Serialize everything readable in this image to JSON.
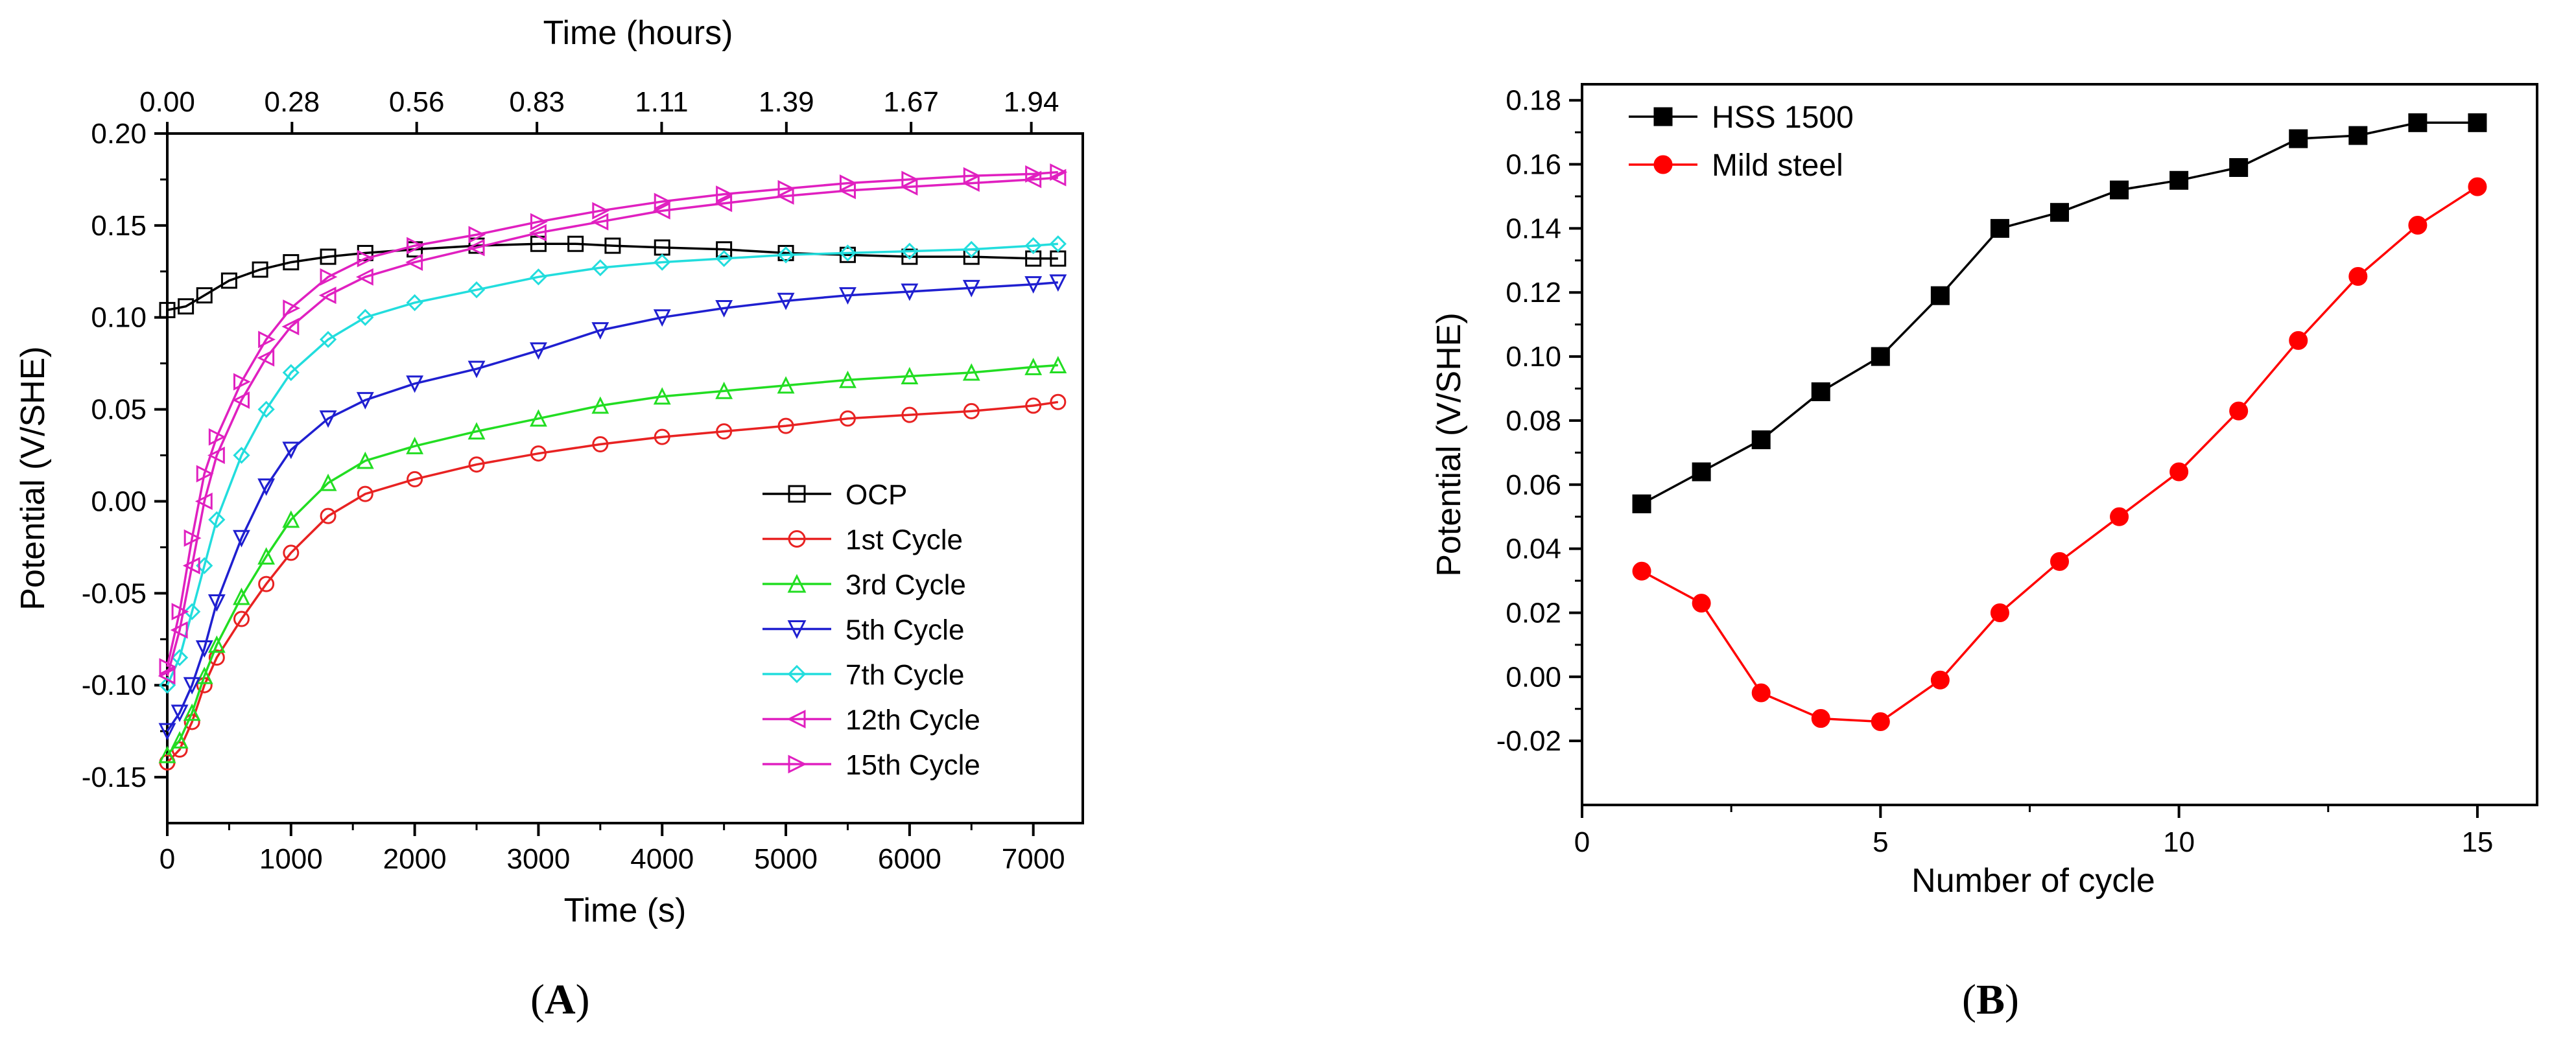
{
  "panels": {
    "a_open": "(",
    "a_letter": "A",
    "a_close": ")",
    "b_open": "(",
    "b_letter": "B",
    "b_close": ")"
  },
  "chart_data": [
    {
      "type": "line",
      "panel": "A",
      "xlabel": "Time (s)",
      "ylabel": "Potential (V/SHE)",
      "x2label": "Time (hours)",
      "xlim": [
        0,
        7400
      ],
      "ylim": [
        -0.175,
        0.2
      ],
      "x_ticks": [
        "0",
        "1000",
        "2000",
        "3000",
        "4000",
        "5000",
        "6000",
        "7000"
      ],
      "y_ticks": [
        "-0.15",
        "-0.10",
        "-0.05",
        "0.00",
        "0.05",
        "0.10",
        "0.15",
        "0.20"
      ],
      "x2_ticks": [
        "0.00",
        "0.28",
        "0.56",
        "0.83",
        "1.11",
        "1.39",
        "1.67",
        "1.94"
      ],
      "grid": false,
      "legend_position": "bottom-right",
      "series": [
        {
          "name": "OCP",
          "color": "#000000",
          "marker": "square",
          "x": [
            0,
            150,
            300,
            500,
            750,
            1000,
            1300,
            1600,
            2000,
            2500,
            3000,
            3300,
            3600,
            4000,
            4500,
            5000,
            5500,
            6000,
            6500,
            7000,
            7200
          ],
          "y": [
            0.104,
            0.106,
            0.112,
            0.12,
            0.126,
            0.13,
            0.133,
            0.135,
            0.137,
            0.139,
            0.14,
            0.14,
            0.139,
            0.138,
            0.137,
            0.135,
            0.134,
            0.133,
            0.133,
            0.132,
            0.132
          ]
        },
        {
          "name": "1st Cycle",
          "color": "#e82222",
          "marker": "circle",
          "x": [
            0,
            100,
            200,
            300,
            400,
            600,
            800,
            1000,
            1300,
            1600,
            2000,
            2500,
            3000,
            3500,
            4000,
            4500,
            5000,
            5500,
            6000,
            6500,
            7000,
            7200
          ],
          "y": [
            -0.142,
            -0.135,
            -0.12,
            -0.1,
            -0.085,
            -0.064,
            -0.045,
            -0.028,
            -0.008,
            0.004,
            0.012,
            0.02,
            0.026,
            0.031,
            0.035,
            0.038,
            0.041,
            0.045,
            0.047,
            0.049,
            0.052,
            0.054
          ]
        },
        {
          "name": "3rd Cycle",
          "color": "#22dd22",
          "marker": "triangle-up",
          "x": [
            0,
            100,
            200,
            300,
            400,
            600,
            800,
            1000,
            1300,
            1600,
            2000,
            2500,
            3000,
            3500,
            4000,
            4500,
            5000,
            5500,
            6000,
            6500,
            7000,
            7200
          ],
          "y": [
            -0.138,
            -0.13,
            -0.115,
            -0.095,
            -0.078,
            -0.052,
            -0.03,
            -0.01,
            0.01,
            0.022,
            0.03,
            0.038,
            0.045,
            0.052,
            0.057,
            0.06,
            0.063,
            0.066,
            0.068,
            0.07,
            0.073,
            0.074
          ]
        },
        {
          "name": "5th Cycle",
          "color": "#1f1fd0",
          "marker": "triangle-down",
          "x": [
            0,
            100,
            200,
            300,
            400,
            600,
            800,
            1000,
            1300,
            1600,
            2000,
            2500,
            3000,
            3500,
            4000,
            4500,
            5000,
            5500,
            6000,
            6500,
            7000,
            7200
          ],
          "y": [
            -0.125,
            -0.115,
            -0.1,
            -0.08,
            -0.055,
            -0.02,
            0.008,
            0.028,
            0.045,
            0.055,
            0.064,
            0.072,
            0.082,
            0.093,
            0.1,
            0.105,
            0.109,
            0.112,
            0.114,
            0.116,
            0.118,
            0.119
          ]
        },
        {
          "name": "7th Cycle",
          "color": "#22dddd",
          "marker": "diamond",
          "x": [
            0,
            100,
            200,
            300,
            400,
            600,
            800,
            1000,
            1300,
            1600,
            2000,
            2500,
            3000,
            3500,
            4000,
            4500,
            5000,
            5500,
            6000,
            6500,
            7000,
            7200
          ],
          "y": [
            -0.1,
            -0.085,
            -0.06,
            -0.035,
            -0.01,
            0.025,
            0.05,
            0.07,
            0.088,
            0.1,
            0.108,
            0.115,
            0.122,
            0.127,
            0.13,
            0.132,
            0.134,
            0.135,
            0.136,
            0.137,
            0.139,
            0.14
          ]
        },
        {
          "name": "12th Cycle",
          "color": "#e020c0",
          "marker": "triangle-left",
          "x": [
            0,
            100,
            200,
            300,
            400,
            600,
            800,
            1000,
            1300,
            1600,
            2000,
            2500,
            3000,
            3500,
            4000,
            4500,
            5000,
            5500,
            6000,
            6500,
            7000,
            7200
          ],
          "y": [
            -0.095,
            -0.07,
            -0.035,
            0.0,
            0.025,
            0.055,
            0.078,
            0.095,
            0.112,
            0.122,
            0.13,
            0.138,
            0.146,
            0.152,
            0.158,
            0.162,
            0.166,
            0.169,
            0.171,
            0.173,
            0.175,
            0.176
          ]
        },
        {
          "name": "15th Cycle",
          "color": "#e020c0",
          "marker": "triangle-right",
          "x": [
            0,
            100,
            200,
            300,
            400,
            600,
            800,
            1000,
            1300,
            1600,
            2000,
            2500,
            3000,
            3500,
            4000,
            4500,
            5000,
            5500,
            6000,
            6500,
            7000,
            7200
          ],
          "y": [
            -0.09,
            -0.06,
            -0.02,
            0.015,
            0.035,
            0.065,
            0.088,
            0.105,
            0.122,
            0.132,
            0.139,
            0.145,
            0.152,
            0.158,
            0.163,
            0.167,
            0.17,
            0.173,
            0.175,
            0.177,
            0.178,
            0.179
          ]
        }
      ]
    },
    {
      "type": "line",
      "panel": "B",
      "xlabel": "Number of cycle",
      "ylabel": "Potential (V/SHE)",
      "xlim": [
        0,
        16
      ],
      "ylim": [
        -0.04,
        0.185
      ],
      "x_ticks": [
        "0",
        "5",
        "10",
        "15"
      ],
      "y_ticks": [
        "-0.02",
        "0.00",
        "0.02",
        "0.04",
        "0.06",
        "0.08",
        "0.10",
        "0.12",
        "0.14",
        "0.16",
        "0.18"
      ],
      "grid": false,
      "legend_position": "top-left",
      "series": [
        {
          "name": "HSS 1500",
          "color": "#000000",
          "marker": "square",
          "x": [
            1,
            2,
            3,
            4,
            5,
            6,
            7,
            8,
            9,
            10,
            11,
            12,
            13,
            14,
            15
          ],
          "y": [
            0.054,
            0.064,
            0.074,
            0.089,
            0.1,
            0.119,
            0.14,
            0.145,
            0.152,
            0.155,
            0.159,
            0.168,
            0.169,
            0.173,
            0.173
          ]
        },
        {
          "name": "Mild steel",
          "color": "#ff0000",
          "marker": "circle",
          "x": [
            1,
            2,
            3,
            4,
            5,
            6,
            7,
            8,
            9,
            10,
            11,
            12,
            13,
            14,
            15
          ],
          "y": [
            0.033,
            0.023,
            -0.005,
            -0.013,
            -0.014,
            -0.001,
            0.02,
            0.036,
            0.05,
            0.064,
            0.083,
            0.105,
            0.125,
            0.141,
            0.153
          ]
        }
      ]
    }
  ]
}
